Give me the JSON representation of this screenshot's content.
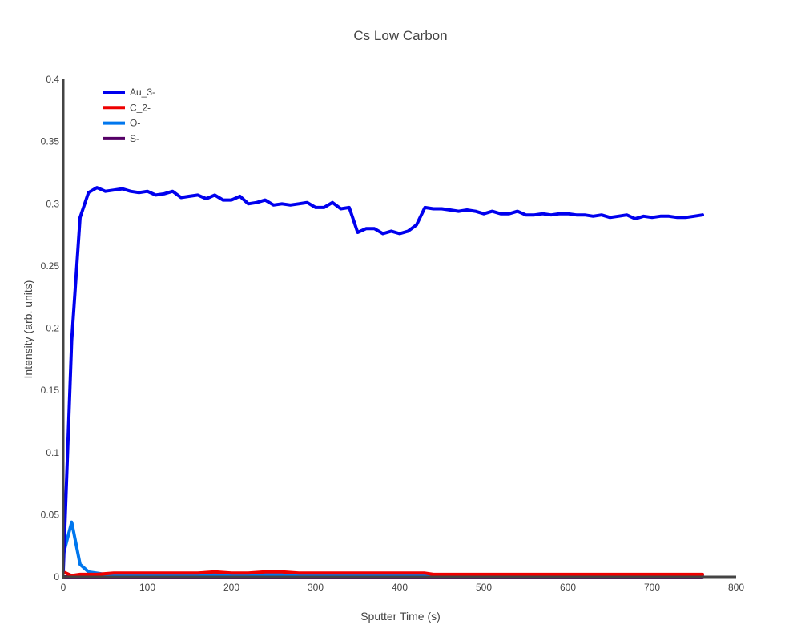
{
  "chart_data": {
    "type": "line",
    "title": "Cs Low Carbon",
    "xlabel": "Sputter Time (s)",
    "ylabel": "Intensity (arb. units)",
    "xlim": [
      0,
      800
    ],
    "ylim": [
      0,
      0.4
    ],
    "x_ticks": [
      "0",
      "100",
      "200",
      "300",
      "400",
      "500",
      "600",
      "700",
      "800"
    ],
    "y_ticks": [
      "0",
      "0.05",
      "0.1",
      "0.15",
      "0.2",
      "0.25",
      "0.3",
      "0.35",
      "0.4"
    ],
    "grid": false,
    "legend_position": "top-left",
    "series": [
      {
        "name": "Au_3-",
        "color": "#0000ee",
        "x": [
          0,
          10,
          20,
          30,
          40,
          50,
          60,
          70,
          80,
          90,
          100,
          110,
          120,
          130,
          140,
          150,
          160,
          170,
          180,
          190,
          200,
          210,
          220,
          230,
          240,
          250,
          260,
          270,
          280,
          290,
          300,
          310,
          320,
          330,
          340,
          350,
          360,
          370,
          380,
          390,
          400,
          410,
          420,
          430,
          440,
          450,
          460,
          470,
          480,
          490,
          500,
          510,
          520,
          530,
          540,
          550,
          560,
          570,
          580,
          590,
          600,
          610,
          620,
          630,
          640,
          650,
          660,
          670,
          680,
          690,
          700,
          710,
          720,
          730,
          740,
          750,
          760
        ],
        "y": [
          0.005,
          0.19,
          0.289,
          0.309,
          0.313,
          0.31,
          0.311,
          0.312,
          0.31,
          0.309,
          0.31,
          0.307,
          0.308,
          0.31,
          0.305,
          0.306,
          0.307,
          0.304,
          0.307,
          0.303,
          0.303,
          0.306,
          0.3,
          0.301,
          0.303,
          0.299,
          0.3,
          0.299,
          0.3,
          0.301,
          0.297,
          0.297,
          0.301,
          0.296,
          0.297,
          0.277,
          0.28,
          0.28,
          0.276,
          0.278,
          0.276,
          0.278,
          0.283,
          0.297,
          0.296,
          0.296,
          0.295,
          0.294,
          0.295,
          0.294,
          0.292,
          0.294,
          0.292,
          0.292,
          0.294,
          0.291,
          0.291,
          0.292,
          0.291,
          0.292,
          0.292,
          0.291,
          0.291,
          0.29,
          0.291,
          0.289,
          0.29,
          0.291,
          0.288,
          0.29,
          0.289,
          0.29,
          0.29,
          0.289,
          0.289,
          0.29,
          0.291
        ]
      },
      {
        "name": "C_2-",
        "color": "#ee0000",
        "x": [
          0,
          10,
          20,
          30,
          40,
          60,
          80,
          100,
          120,
          140,
          160,
          180,
          200,
          220,
          240,
          260,
          280,
          300,
          350,
          400,
          430,
          440,
          500,
          550,
          600,
          650,
          700,
          760
        ],
        "y": [
          0.004,
          0.001,
          0.002,
          0.002,
          0.002,
          0.003,
          0.003,
          0.003,
          0.003,
          0.003,
          0.003,
          0.004,
          0.003,
          0.003,
          0.004,
          0.004,
          0.003,
          0.003,
          0.003,
          0.003,
          0.003,
          0.002,
          0.002,
          0.002,
          0.002,
          0.002,
          0.002,
          0.002
        ]
      },
      {
        "name": "O-",
        "color": "#0077ee",
        "x": [
          0,
          10,
          20,
          30,
          40,
          50,
          60,
          80,
          100,
          150,
          200,
          300,
          400,
          500,
          600,
          700,
          760
        ],
        "y": [
          0.018,
          0.044,
          0.01,
          0.004,
          0.003,
          0.002,
          0.002,
          0.002,
          0.002,
          0.002,
          0.002,
          0.002,
          0.001,
          0.001,
          0.001,
          0.001,
          0.001
        ]
      },
      {
        "name": "S-",
        "color": "#550066",
        "x": [
          0,
          10,
          20,
          30,
          40,
          50,
          100,
          200,
          300,
          400,
          500,
          600,
          700,
          760
        ],
        "y": [
          0.0,
          0.0,
          0.0,
          0.0,
          0.0,
          0.0,
          0.0,
          0.0,
          0.0,
          0.0,
          0.0,
          0.0,
          0.0,
          0.0
        ]
      }
    ]
  }
}
